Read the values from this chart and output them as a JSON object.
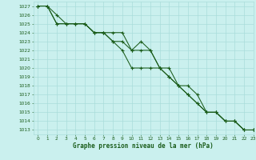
{
  "title": "Graphe pression niveau de la mer (hPa)",
  "bg_color": "#caf0ee",
  "grid_color": "#aaddda",
  "line_color": "#1a5c1a",
  "xlim": [
    -0.5,
    23
  ],
  "ylim": [
    1012.5,
    1027.5
  ],
  "yticks": [
    1013,
    1014,
    1015,
    1016,
    1017,
    1018,
    1019,
    1020,
    1021,
    1022,
    1023,
    1024,
    1025,
    1026,
    1027
  ],
  "xticks": [
    0,
    1,
    2,
    3,
    4,
    5,
    6,
    7,
    8,
    9,
    10,
    11,
    12,
    13,
    14,
    15,
    16,
    17,
    18,
    19,
    20,
    21,
    22,
    23
  ],
  "line1": [
    1027,
    1027,
    1026,
    1025,
    1025,
    1025,
    1024,
    1024,
    1024,
    1024,
    1022,
    1023,
    1022,
    1020,
    1020,
    1018,
    1018,
    1017,
    1015,
    1015,
    1014,
    1014,
    1013,
    1013
  ],
  "line2": [
    1027,
    1027,
    1025,
    1025,
    1025,
    1025,
    1024,
    1024,
    1023,
    1023,
    1022,
    1022,
    1022,
    1020,
    1019,
    1018,
    1017,
    1016,
    1015,
    1015,
    1014,
    1014,
    1013,
    1013
  ],
  "line3": [
    1027,
    1027,
    1025,
    1025,
    1025,
    1025,
    1024,
    1024,
    1023,
    1022,
    1020,
    1020,
    1020,
    1020,
    1019,
    1018,
    1017,
    1016,
    1015,
    1015,
    1014,
    1014,
    1013,
    1013
  ]
}
